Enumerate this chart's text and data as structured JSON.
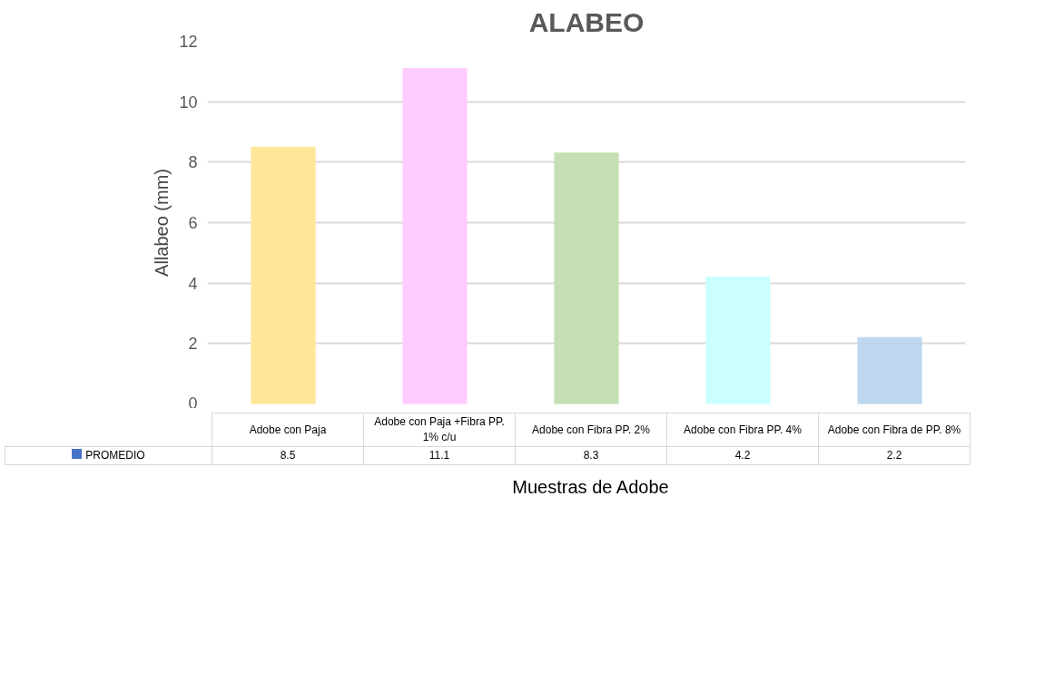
{
  "chart_data": {
    "type": "bar",
    "title": "ALABEO",
    "xlabel": "Muestras  de Adobe",
    "ylabel": "Allabeo (mm)",
    "categories": [
      "Adobe con Paja",
      "Adobe con Paja +Fibra PP. 1% c/u",
      "Adobe con Fibra PP.  2%",
      "Adobe con Fibra PP. 4%",
      "Adobe con Fibra de PP. 8%"
    ],
    "series": [
      {
        "name": "PROMEDIO",
        "color": "#4472c4",
        "values": [
          8.5,
          11.1,
          8.3,
          4.2,
          2.2
        ],
        "colors": [
          "#ffe699",
          "#ffccff",
          "#c5e0b4",
          "#ccffff",
          "#bdd7ee"
        ]
      }
    ],
    "ylim": [
      0,
      12
    ],
    "yticks": [
      0,
      2,
      4,
      6,
      8,
      10,
      12
    ],
    "grid": "y",
    "data_labels": true,
    "legend": "bottom left"
  }
}
